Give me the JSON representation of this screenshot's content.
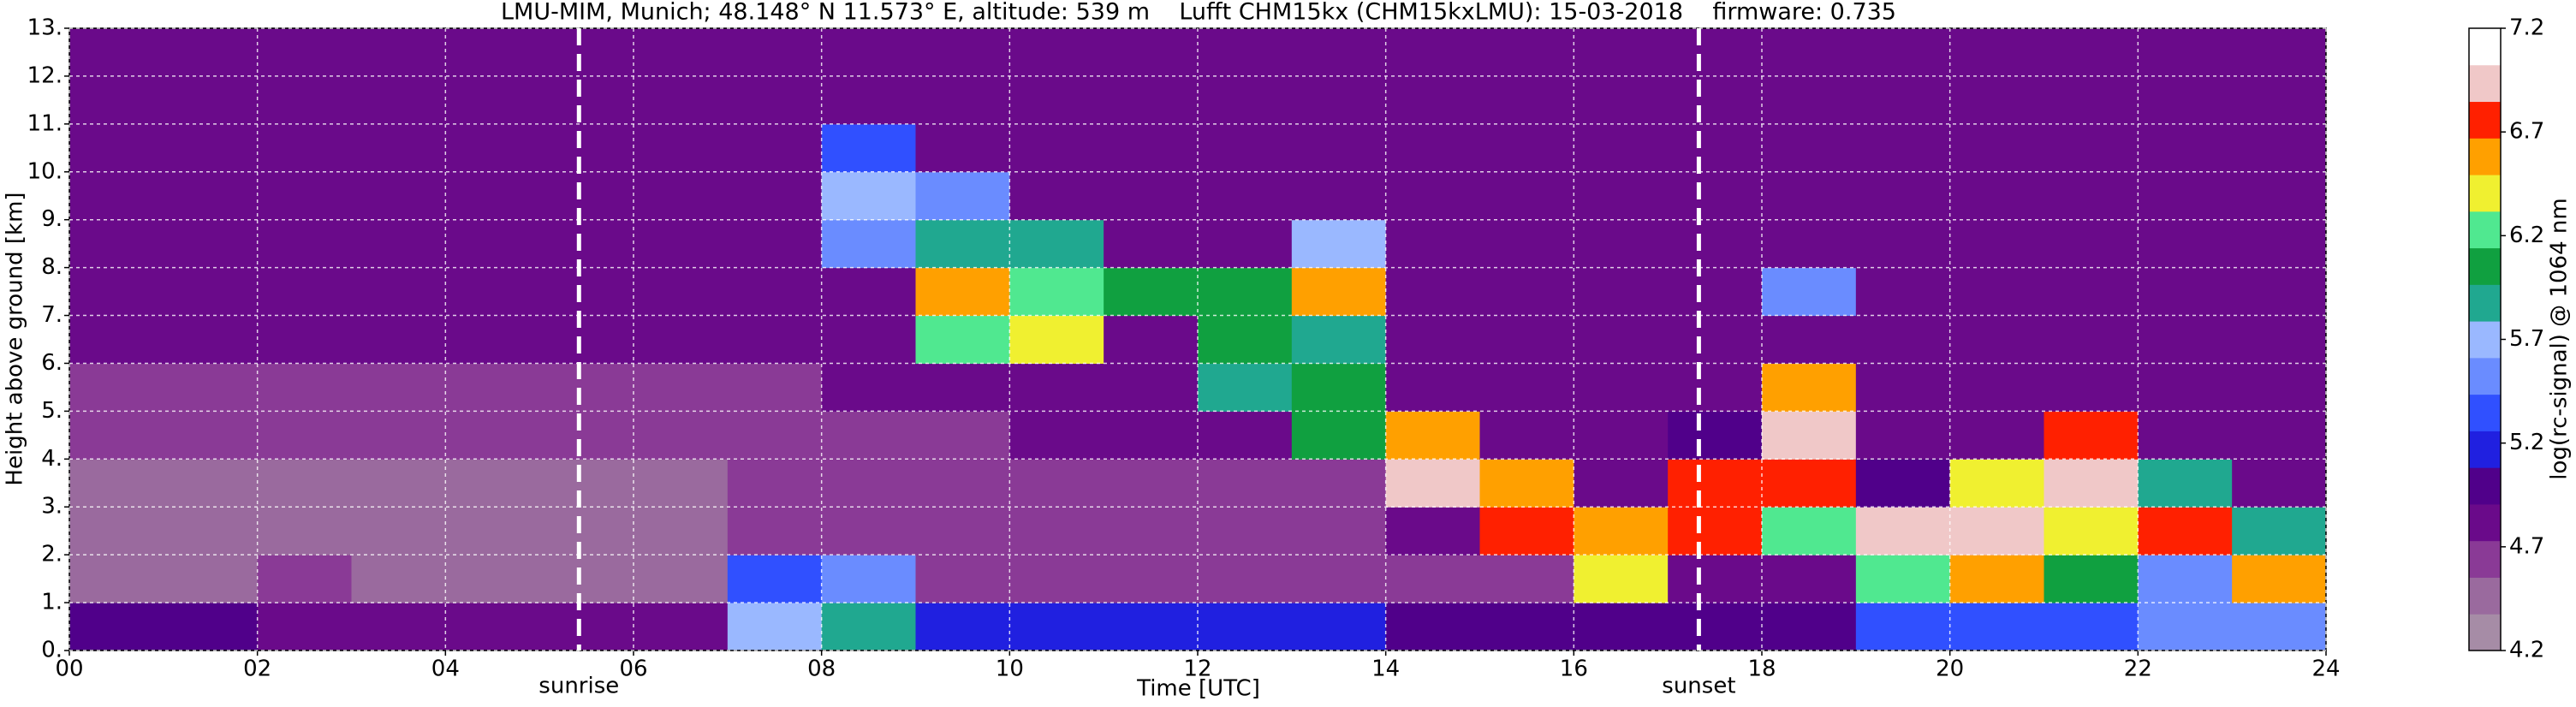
{
  "chart_data": {
    "type": "heatmap",
    "title": "LMU-MIM, Munich; 48.148° N 11.573° E, altitude: 539 m    Lufft CHM15kx (CHM15kxLMU): 15-03-2018    firmware: 0.735",
    "x_label": "Time [UTC]",
    "y_label": "Height above ground [km]",
    "colorbar_label": "log(rc-signal) @ 1064 nm",
    "xlim": [
      0,
      24
    ],
    "ylim": [
      0,
      13
    ],
    "clim": [
      4.2,
      7.2
    ],
    "xticks": [
      {
        "value": 0,
        "label": "00"
      },
      {
        "value": 2,
        "label": "02"
      },
      {
        "value": 4,
        "label": "04"
      },
      {
        "value": 6,
        "label": "06"
      },
      {
        "value": 8,
        "label": "08"
      },
      {
        "value": 10,
        "label": "10"
      },
      {
        "value": 12,
        "label": "12"
      },
      {
        "value": 14,
        "label": "14"
      },
      {
        "value": 16,
        "label": "16"
      },
      {
        "value": 18,
        "label": "18"
      },
      {
        "value": 20,
        "label": "20"
      },
      {
        "value": 22,
        "label": "22"
      },
      {
        "value": 24,
        "label": "24"
      }
    ],
    "yticks": [
      {
        "value": 0,
        "label": "0."
      },
      {
        "value": 1,
        "label": "1."
      },
      {
        "value": 2,
        "label": "2."
      },
      {
        "value": 3,
        "label": "3."
      },
      {
        "value": 4,
        "label": "4."
      },
      {
        "value": 5,
        "label": "5."
      },
      {
        "value": 6,
        "label": "6."
      },
      {
        "value": 7,
        "label": "7."
      },
      {
        "value": 8,
        "label": "8."
      },
      {
        "value": 9,
        "label": "9."
      },
      {
        "value": 10,
        "label": "10."
      },
      {
        "value": 11,
        "label": "11."
      },
      {
        "value": 12,
        "label": "12."
      },
      {
        "value": 13,
        "label": "13."
      }
    ],
    "cticks": [
      4.2,
      4.7,
      5.2,
      5.7,
      6.2,
      6.7,
      7.2
    ],
    "grid": true,
    "colorscale": [
      "#a68ca6",
      "#9a6a9e",
      "#8a3a96",
      "#6a0a8a",
      "#50008a",
      "#2020e0",
      "#3050ff",
      "#6a8cff",
      "#9ab8ff",
      "#20a890",
      "#10a040",
      "#50e890",
      "#f0f030",
      "#ffa000",
      "#ff2000",
      "#f0c8c8",
      "#ffffff"
    ],
    "annotations": [
      {
        "text": "sunrise",
        "x": 5.42
      },
      {
        "text": "sunset",
        "x": 17.33
      }
    ],
    "z": [
      [
        5.0,
        5.0,
        4.9,
        4.9,
        4.9,
        4.9,
        4.9,
        5.7,
        5.9,
        5.2,
        5.1,
        5.1,
        5.1,
        5.1,
        5.0,
        5.0,
        5.0,
        5.0,
        5.0,
        5.3,
        5.3,
        5.3,
        5.6,
        5.6
      ],
      [
        4.4,
        4.4,
        4.6,
        4.5,
        4.5,
        4.5,
        4.5,
        5.4,
        5.5,
        4.6,
        4.7,
        4.7,
        4.7,
        4.7,
        4.7,
        4.7,
        6.4,
        4.8,
        4.8,
        6.2,
        6.6,
        6.0,
        5.6,
        6.5
      ],
      [
        4.5,
        4.5,
        4.5,
        4.5,
        4.5,
        4.5,
        4.5,
        4.6,
        4.6,
        4.7,
        4.7,
        4.7,
        4.7,
        4.7,
        4.8,
        6.8,
        6.6,
        6.8,
        6.3,
        7.0,
        6.9,
        6.4,
        6.8,
        5.8
      ],
      [
        4.5,
        4.5,
        4.5,
        4.5,
        4.5,
        4.5,
        4.5,
        4.6,
        4.6,
        4.7,
        4.7,
        4.7,
        4.7,
        4.7,
        7.0,
        6.6,
        4.9,
        6.7,
        6.8,
        5.0,
        6.4,
        6.9,
        5.8,
        4.8
      ],
      [
        4.6,
        4.6,
        4.6,
        4.6,
        4.6,
        4.6,
        4.6,
        4.6,
        4.7,
        4.7,
        4.8,
        4.8,
        4.8,
        6.0,
        6.6,
        4.8,
        4.8,
        5.0,
        6.9,
        4.8,
        4.9,
        6.8,
        4.9,
        4.8
      ],
      [
        4.7,
        4.7,
        4.7,
        4.7,
        4.7,
        4.7,
        4.7,
        4.7,
        4.8,
        4.8,
        4.8,
        4.8,
        5.8,
        6.0,
        4.8,
        4.8,
        4.8,
        4.8,
        6.5,
        4.8,
        4.8,
        4.8,
        4.8,
        4.8
      ],
      [
        4.8,
        4.8,
        4.8,
        4.8,
        4.8,
        4.8,
        4.8,
        4.8,
        4.8,
        6.2,
        6.4,
        4.9,
        6.0,
        5.9,
        4.8,
        4.8,
        4.8,
        4.8,
        4.9,
        4.8,
        4.8,
        4.8,
        4.8,
        4.8
      ],
      [
        4.8,
        4.8,
        4.8,
        4.8,
        4.8,
        4.8,
        4.8,
        4.8,
        4.9,
        6.5,
        6.3,
        6.0,
        6.1,
        6.5,
        4.8,
        4.8,
        4.8,
        4.8,
        5.6,
        4.8,
        4.8,
        4.8,
        4.8,
        4.8
      ],
      [
        4.8,
        4.8,
        4.8,
        4.8,
        4.8,
        4.8,
        4.8,
        4.8,
        5.6,
        5.9,
        5.8,
        4.9,
        4.9,
        5.7,
        4.8,
        4.8,
        4.8,
        4.8,
        4.8,
        4.8,
        4.8,
        4.8,
        4.8,
        4.8
      ],
      [
        4.8,
        4.8,
        4.8,
        4.8,
        4.8,
        4.8,
        4.8,
        4.8,
        5.7,
        5.6,
        4.9,
        4.8,
        4.8,
        4.8,
        4.8,
        4.8,
        4.8,
        4.8,
        4.8,
        4.8,
        4.8,
        4.8,
        4.8,
        4.8
      ],
      [
        4.8,
        4.8,
        4.8,
        4.8,
        4.8,
        4.8,
        4.8,
        4.8,
        5.3,
        4.9,
        4.8,
        4.8,
        4.8,
        4.8,
        4.8,
        4.8,
        4.8,
        4.8,
        4.8,
        4.8,
        4.8,
        4.8,
        4.8,
        4.8
      ],
      [
        4.8,
        4.8,
        4.8,
        4.8,
        4.8,
        4.8,
        4.8,
        4.8,
        4.8,
        4.8,
        4.8,
        4.8,
        4.8,
        4.8,
        4.8,
        4.8,
        4.8,
        4.8,
        4.8,
        4.8,
        4.8,
        4.8,
        4.8,
        4.8
      ],
      [
        4.8,
        4.8,
        4.8,
        4.8,
        4.8,
        4.8,
        4.8,
        4.8,
        4.8,
        4.8,
        4.8,
        4.8,
        4.8,
        4.8,
        4.8,
        4.8,
        4.8,
        4.8,
        4.8,
        4.8,
        4.8,
        4.8,
        4.8,
        4.8
      ]
    ]
  }
}
